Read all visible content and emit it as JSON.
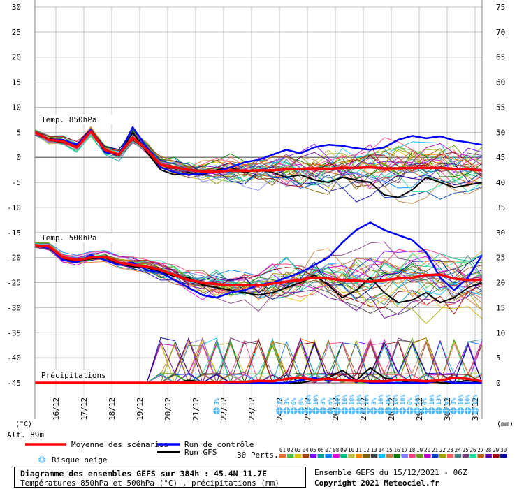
{
  "chart_data": {
    "type": "line",
    "title": "Diagramme des ensembles GEFS sur 384h : 45.4N 11.7E",
    "subtitle": "Températures 850hPa et 500hPa (°C) , précipitations (mm)",
    "left_axis": {
      "unit_label": "(°C)",
      "ticks": [
        30,
        25,
        20,
        15,
        10,
        5,
        0,
        -5,
        -10,
        -15,
        -20,
        -25,
        -30,
        -35,
        -40,
        -45
      ],
      "ylim": [
        -45,
        30
      ]
    },
    "right_axis": {
      "unit_label": "(mm)",
      "ticks": [
        75,
        70,
        65,
        60,
        55,
        50,
        45,
        40,
        35,
        30,
        25,
        20,
        15,
        10,
        5,
        0
      ],
      "ylim": [
        0,
        75
      ]
    },
    "x_axis": {
      "unit": "hours",
      "range": [
        0,
        384
      ],
      "date_labels": [
        "16/12",
        "17/12",
        "18/12",
        "19/12",
        "20/12",
        "21/12",
        "22/12",
        "23/12",
        "24/12",
        "25/12",
        "26/12",
        "27/12",
        "28/12",
        "29/12",
        "30/12",
        "31/12"
      ]
    },
    "altitude_label": "Alt. 89m",
    "panels": {
      "t850": "Temp. 850hPa",
      "t500": "Temp. 500hPa",
      "precip": "Précipitations"
    },
    "legend": {
      "mean": "Moyenne des scénarios",
      "control": "Run de contrôle",
      "gfs": "Run GFS",
      "snow": "Risque neige",
      "perts": "30 Perts."
    },
    "colors": {
      "mean": "#ff0000",
      "control": "#0000ff",
      "gfs": "#000000",
      "snow": "#4db8ff",
      "grid": "#c0c0c0",
      "axis": "#808080"
    },
    "hours": [
      0,
      12,
      24,
      36,
      48,
      60,
      72,
      84,
      96,
      108,
      120,
      132,
      144,
      156,
      168,
      180,
      192,
      204,
      216,
      228,
      240,
      252,
      264,
      276,
      288,
      300,
      312,
      324,
      336,
      348,
      360,
      372,
      384
    ],
    "series": [
      {
        "name": "Moyenne des scénarios T850",
        "values": [
          5,
          3.5,
          3.2,
          2.0,
          5.2,
          1.5,
          0.5,
          4.0,
          1.5,
          -1.5,
          -2.0,
          -2.5,
          -2.8,
          -2.9,
          -2.6,
          -2.7,
          -2.6,
          -2.6,
          -2.4,
          -2.3,
          -2.2,
          -2.3,
          -2.1,
          -2.1,
          -2.0,
          -2.2,
          -2.2,
          -2.1,
          -2.1,
          -2.1,
          -2.3,
          -2.4,
          -2.6
        ]
      },
      {
        "name": "Run de contrôle T850",
        "values": [
          5,
          3.5,
          3.5,
          2.5,
          5.5,
          1.0,
          0.5,
          6.0,
          2.0,
          -2.0,
          -3.0,
          -3.5,
          -3.2,
          -2.8,
          -2.0,
          -1.0,
          -0.5,
          0.5,
          1.5,
          0.8,
          2.0,
          2.5,
          2.3,
          1.8,
          1.5,
          2.0,
          3.5,
          4.3,
          3.8,
          4.2,
          3.4,
          3.0,
          2.5
        ]
      },
      {
        "name": "Run GFS T850",
        "values": [
          5,
          3.4,
          3.0,
          2.2,
          5.4,
          1.3,
          0.3,
          5.0,
          1.0,
          -2.5,
          -3.5,
          -3.0,
          -3.5,
          -2.5,
          -2.0,
          -3.0,
          -2.5,
          -3.0,
          -4.0,
          -3.5,
          -4.5,
          -5.0,
          -4.0,
          -4.5,
          -5.0,
          -7.5,
          -8.0,
          -6.5,
          -4.0,
          -5.0,
          -6.0,
          -5.5,
          -5.0
        ]
      },
      {
        "name": "Moyenne des scénarios T500",
        "values": [
          -17.5,
          -17.8,
          -20.0,
          -20.5,
          -20.0,
          -19.8,
          -21.0,
          -21.5,
          -21.8,
          -22.5,
          -23.5,
          -24.5,
          -25.0,
          -25.3,
          -25.5,
          -25.5,
          -25.6,
          -25.2,
          -24.8,
          -24.5,
          -24.0,
          -24.2,
          -24.5,
          -24.6,
          -24.8,
          -24.5,
          -24.2,
          -24.0,
          -23.5,
          -23.4,
          -24.2,
          -24.5,
          -24.4
        ]
      },
      {
        "name": "Run de contrôle T500",
        "values": [
          -17.5,
          -18.0,
          -20.5,
          -21.0,
          -19.5,
          -20.5,
          -21.5,
          -21.0,
          -22.5,
          -23.0,
          -24.5,
          -26.0,
          -27.5,
          -28.0,
          -27.0,
          -26.5,
          -25.5,
          -25.0,
          -24.0,
          -23.0,
          -21.5,
          -20.0,
          -17.0,
          -14.5,
          -13.0,
          -14.5,
          -15.5,
          -16.5,
          -19.0,
          -24.0,
          -26.5,
          -24.0,
          -19.5
        ]
      },
      {
        "name": "Run GFS T500",
        "values": [
          -17.5,
          -17.8,
          -20.2,
          -20.8,
          -20.2,
          -20.0,
          -21.2,
          -21.8,
          -22.0,
          -22.8,
          -23.8,
          -24.0,
          -25.5,
          -26.0,
          -26.5,
          -27.0,
          -27.5,
          -27.0,
          -26.0,
          -25.0,
          -23.5,
          -25.5,
          -28.0,
          -26.5,
          -24.0,
          -27.0,
          -29.0,
          -28.5,
          -27.0,
          -29.0,
          -28.0,
          -26.0,
          -25.0
        ]
      },
      {
        "name": "Moyenne des scénarios précipitations",
        "values": [
          0,
          0,
          0,
          0,
          0,
          0,
          0,
          0,
          0,
          0,
          0.1,
          0.1,
          0.1,
          0.1,
          0.2,
          0.2,
          0.4,
          0.3,
          0.8,
          1.0,
          0.6,
          0.8,
          0.5,
          0.4,
          0.3,
          0.3,
          0.6,
          0.5,
          0.3,
          0.5,
          1.0,
          0.8,
          0.3
        ]
      },
      {
        "name": "Run de contrôle précipitations",
        "values": [
          0,
          0,
          0,
          0,
          0,
          0,
          0,
          0,
          0,
          0,
          0,
          0,
          0,
          0,
          0,
          0,
          0,
          0,
          0,
          0.5,
          1.0,
          0.5,
          0.5,
          0.5,
          0,
          0,
          0,
          0,
          0,
          0.5,
          0,
          0,
          0
        ]
      },
      {
        "name": "Run GFS précipitations",
        "values": [
          0,
          0,
          0,
          0,
          0,
          0,
          0,
          0,
          0,
          0,
          0,
          0.5,
          0.2,
          0,
          0,
          0,
          0,
          0,
          0,
          0,
          0.5,
          1.0,
          2.5,
          0.5,
          3.0,
          1.0,
          0.5,
          0,
          0.5,
          0,
          0,
          0.5,
          0
        ]
      }
    ],
    "snow_risk": [
      {
        "day": "21/12",
        "value": "3%"
      },
      {
        "day": "24/12",
        "value": "3%"
      },
      {
        "day": "24/12",
        "value": "3%"
      },
      {
        "day": "24/12",
        "value": "6%"
      },
      {
        "day": "25/12",
        "value": "6%"
      },
      {
        "day": "25/12",
        "value": "10%"
      },
      {
        "day": "25/12",
        "value": "10%"
      },
      {
        "day": "25/12",
        "value": "3%"
      },
      {
        "day": "26/12",
        "value": "6%"
      },
      {
        "day": "26/12",
        "value": "10%"
      },
      {
        "day": "26/12",
        "value": "10%"
      },
      {
        "day": "26/12",
        "value": "10%"
      },
      {
        "day": "27/12",
        "value": "10%"
      },
      {
        "day": "27/12",
        "value": "10%"
      },
      {
        "day": "27/12",
        "value": "3%"
      },
      {
        "day": "27/12",
        "value": "10%"
      },
      {
        "day": "28/12",
        "value": "16%"
      },
      {
        "day": "28/12",
        "value": "10%"
      },
      {
        "day": "28/12",
        "value": "10%"
      },
      {
        "day": "28/12",
        "value": "6%"
      },
      {
        "day": "29/12",
        "value": "10%"
      },
      {
        "day": "29/12",
        "value": "6%"
      },
      {
        "day": "29/12",
        "value": "10%"
      },
      {
        "day": "29/12",
        "value": "13%"
      },
      {
        "day": "30/12",
        "value": "6%"
      },
      {
        "day": "30/12",
        "value": "3%"
      },
      {
        "day": "30/12",
        "value": "10%"
      },
      {
        "day": "30/12",
        "value": "10%"
      },
      {
        "day": "31/12",
        "value": "13%"
      }
    ],
    "members": {
      "labels": [
        "01",
        "02",
        "03",
        "04",
        "05",
        "06",
        "07",
        "08",
        "09",
        "10",
        "11",
        "12",
        "13",
        "14",
        "15",
        "16",
        "17",
        "18",
        "19",
        "20",
        "21",
        "22",
        "23",
        "24",
        "25",
        "26",
        "27",
        "28",
        "29",
        "30"
      ],
      "colors": [
        "#e07030",
        "#40c040",
        "#e0c000",
        "#a04000",
        "#8000ff",
        "#00a0a0",
        "#0080ff",
        "#e000e0",
        "#00c080",
        "#c0c040",
        "#ff8000",
        "#806000",
        "#404040",
        "#00c0ff",
        "#c08040",
        "#008000",
        "#8080ff",
        "#ff4080",
        "#60a000",
        "#c000c0",
        "#0040c0",
        "#a0a000",
        "#ff6060",
        "#408080",
        "#804080",
        "#20e0a0",
        "#c06000",
        "#6000a0",
        "#a00000",
        "#0000a0"
      ]
    }
  },
  "footer": {
    "title": "Diagramme des ensembles GEFS sur 384h : 45.4N 11.7E",
    "subtitle": "Températures 850hPa et 500hPa (°C) , précipitations (mm)",
    "run": "Ensemble GEFS du 15/12/2021 - 06Z",
    "copyright": "Copyright 2021 Meteociel.fr"
  }
}
